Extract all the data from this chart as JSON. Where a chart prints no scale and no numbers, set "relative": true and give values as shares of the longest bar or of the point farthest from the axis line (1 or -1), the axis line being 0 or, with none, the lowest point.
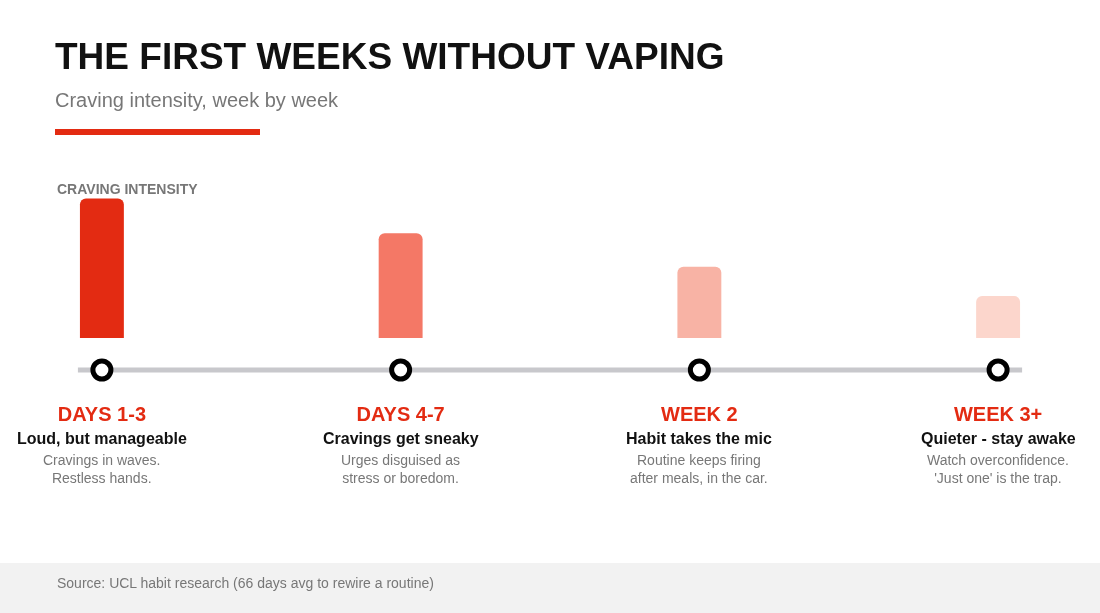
{
  "chart_data": {
    "type": "bar",
    "title": "THE FIRST WEEKS WITHOUT VAPING",
    "subtitle": "Craving intensity, week by week",
    "ylabel": "CRAVING INTENSITY",
    "relative": true,
    "categories": [
      "DAYS 1-3",
      "DAYS 4-7",
      "WEEK 2",
      "WEEK 3+"
    ],
    "values": [
      1,
      0.75,
      0.51,
      0.3
    ],
    "colors": [
      "#e32b12",
      "#f47866",
      "#f8b3a5",
      "#fcd6cc"
    ],
    "grid": false,
    "annotations": [
      "Loud, but manageable",
      "Cravings in waves.\nRestless hands.",
      "Cravings get sneaky",
      "Urges disguised as\nstress or boredom.",
      "Habit takes the mic",
      "Routine keeps firing\nafter meals, in the car.",
      "Quieter - stay awake",
      "Watch overconfidence.\n'Just one' is the trap.",
      "Source: UCL habit research (66 days avg to rewire a routine)"
    ]
  }
}
